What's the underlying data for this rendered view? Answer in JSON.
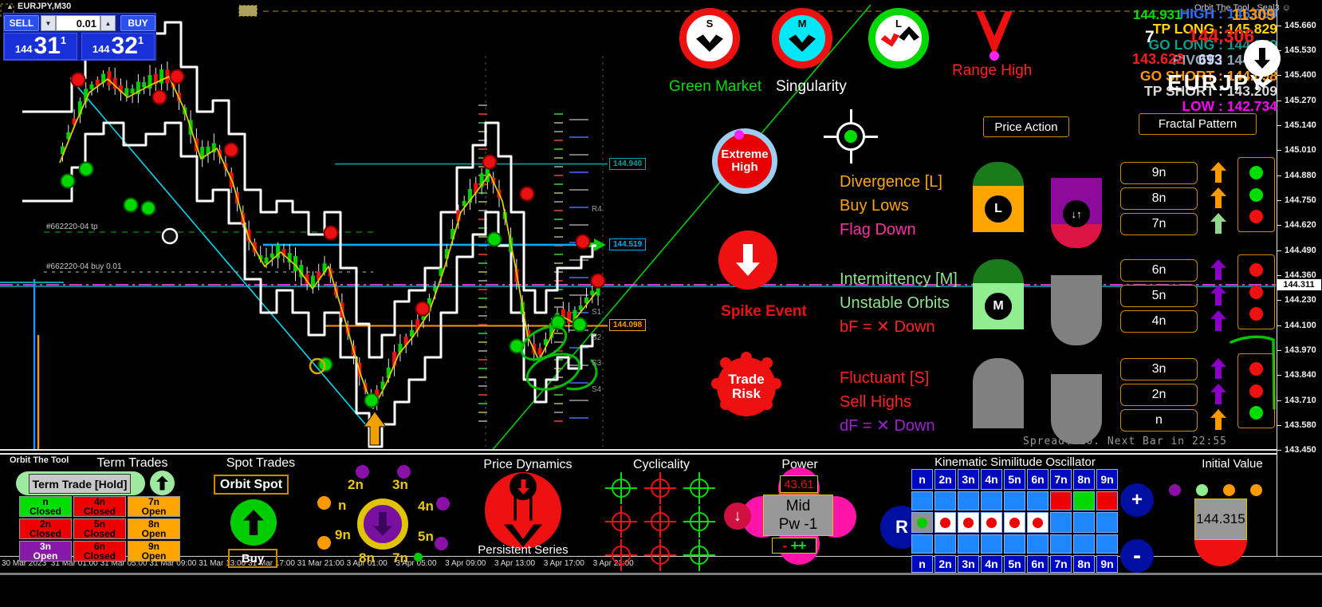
{
  "window": {
    "overlay_title": "Orbit The Tool - Seal3 ☺",
    "watermark": "Orbit The Tool"
  },
  "header": {
    "symbol": "EURJPY,M30",
    "sell": "SELL",
    "buy": "BUY",
    "volume": "0.01",
    "bid_small": "144",
    "bid_big": "31",
    "bid_sup": "1",
    "ask_small": "144",
    "ask_big": "32",
    "ask_sup": "1"
  },
  "signals": {
    "s": "S",
    "m": "M",
    "l": "L",
    "green_market": "Green Market",
    "singularity": "Singularity",
    "range_high": "Range High",
    "extreme_high_1": "Extreme",
    "extreme_high_2": "High",
    "spike_event": "Spike Event",
    "trade_risk_1": "Trade",
    "trade_risk_2": "Risk"
  },
  "panel": {
    "price_action": "Price Action",
    "fractal_pattern": "Fractal Pattern",
    "groups": [
      {
        "lines": [
          {
            "text": "Divergence [L]",
            "color": "#ffa500"
          },
          {
            "text": "Buy Lows",
            "color": "#ffa500"
          },
          {
            "text": "Flag Down",
            "color": "#ff2fa5"
          }
        ],
        "badge": "L",
        "icon1": {
          "shape": "top",
          "dome": "#1b7a1b",
          "body": "#ffa500"
        },
        "icon2": {
          "shape": "bottom",
          "dome": "#dc1444",
          "body": "#8b0a9b",
          "glyph": "↓↑"
        },
        "buttons": [
          {
            "label": "9n"
          },
          {
            "label": "8n"
          },
          {
            "label": "7n"
          }
        ],
        "arrows": [
          {
            "dir": "up",
            "color": "#ff9900"
          },
          {
            "dir": "up",
            "color": "#ff9900"
          },
          {
            "dir": "up",
            "color": "#8fd98f"
          }
        ],
        "dots": [
          "#00dd00",
          "#00dd00",
          "#ee1111"
        ]
      },
      {
        "lines": [
          {
            "text": "Intermittency [M]",
            "color": "#8fe38f"
          },
          {
            "text": "Unstable Orbits",
            "color": "#8fe38f"
          },
          {
            "text": "bF = ✕ Down",
            "color": "#ff2222"
          }
        ],
        "badge": "M",
        "icon1": {
          "shape": "top",
          "dome": "#1b7a1b",
          "body": "#90ee90"
        },
        "icon2": {
          "shape": "bottom",
          "dome": "#808080",
          "body": "#808080",
          "glyph": ""
        },
        "buttons": [
          {
            "label": "6n"
          },
          {
            "label": "5n"
          },
          {
            "label": "4n"
          }
        ],
        "arrows": [
          {
            "dir": "down",
            "color": "#8a00c8"
          },
          {
            "dir": "down",
            "color": "#8a00c8"
          },
          {
            "dir": "down",
            "color": "#8a00c8"
          }
        ],
        "dots": [
          "#ee1111",
          "#ee1111",
          "#ee1111"
        ]
      },
      {
        "lines": [
          {
            "text": "Fluctuant [S]",
            "color": "#ff2222"
          },
          {
            "text": "Sell Highs",
            "color": "#ff2222"
          },
          {
            "text": "dF = ✕ Down",
            "color": "#9922cc"
          }
        ],
        "badge": "",
        "icon1": {
          "shape": "top",
          "dome": "#808080",
          "body": "#808080"
        },
        "icon2": {
          "shape": "bottom",
          "dome": "#808080",
          "body": "#808080",
          "glyph": ""
        },
        "buttons": [
          {
            "label": "3n"
          },
          {
            "label": "2n"
          },
          {
            "label": "n"
          }
        ],
        "arrows": [
          {
            "dir": "down",
            "color": "#8a00c8"
          },
          {
            "dir": "down",
            "color": "#8a00c8"
          },
          {
            "dir": "up",
            "color": "#ff9900"
          }
        ],
        "dots": [
          "#ee1111",
          "#ee1111",
          "#00dd00"
        ]
      }
    ]
  },
  "ticker": {
    "lines": [
      {
        "text": "HIGH : 146.090",
        "color": "#2f6fff"
      },
      {
        "text": "TP LONG : 145.829",
        "color": "#ffd400"
      },
      {
        "text": "GO LONG : 144.940",
        "color": "#0f9b8e"
      },
      {
        "text": "PIVOT : 144.519",
        "color": "#8fa8b8"
      },
      {
        "text": "GO SHORT : 144.098",
        "color": "#ff9900"
      },
      {
        "text": "TP SHORT : 143.209",
        "color": "#d8d8d8"
      },
      {
        "text": "LOW : 142.734",
        "color": "#ff00ff"
      }
    ],
    "bignums": [
      {
        "text": "144.931",
        "color": "#00e000"
      },
      {
        "text": "11309",
        "color": "#ff9900"
      },
      {
        "text": "144.306",
        "color": "#ff1a1a"
      },
      {
        "text": "7",
        "color": "#ffffff"
      },
      {
        "text": "143.622",
        "color": "#ff1a1a"
      },
      {
        "text": "693",
        "color": "#cfd8ff"
      }
    ],
    "symbol": "EURJPY"
  },
  "chart": {
    "price_axis": [
      "145.660",
      "145.530",
      "145.400",
      "145.270",
      "145.140",
      "145.010",
      "144.880",
      "144.750",
      "144.620",
      "144.490",
      "144.360",
      "144.230",
      "144.100",
      "143.970",
      "143.840",
      "143.710",
      "143.580",
      "143.450"
    ],
    "current_price": "144.311",
    "levels": [
      {
        "label": "144.940",
        "color": "#00a0a0"
      },
      {
        "label": "144.519",
        "color": "#00aaff"
      },
      {
        "label": "144.098",
        "color": "#ff9900"
      }
    ],
    "sr_labels": [
      "R4",
      "S1",
      "S2",
      "S3",
      "S4"
    ],
    "trade_labels": [
      "#662220-04 tp",
      "#662220-04 buy 0.01"
    ],
    "time_axis": [
      "30 Mar 2023",
      "31 Mar 01:00",
      "31 Mar 05:00",
      "31 Mar 09:00",
      "31 Mar 13:00",
      "31 Mar 17:00",
      "31 Mar 21:00",
      "3 Apr 01:00",
      "3 Apr 05:00",
      "3 Apr 09:00",
      "3 Apr 13:00",
      "3 Apr 17:00",
      "3 Apr 21:00"
    ],
    "spread_note": "Spread: 10. Next Bar in 22:55"
  },
  "bottom": {
    "term": {
      "title": "Term Trades",
      "hold": "Term Trade [Hold]",
      "cells": [
        {
          "label": "n",
          "status": "Closed",
          "bg": "green"
        },
        {
          "label": "4n",
          "status": "Closed",
          "bg": "red"
        },
        {
          "label": "7n",
          "status": "Open",
          "bg": "orange"
        },
        {
          "label": "2n",
          "status": "Closed",
          "bg": "red"
        },
        {
          "label": "5n",
          "status": "Closed",
          "bg": "red"
        },
        {
          "label": "8n",
          "status": "Open",
          "bg": "orange"
        },
        {
          "label": "3n",
          "status": "Open",
          "bg": "purple"
        },
        {
          "label": "6n",
          "status": "Closed",
          "bg": "red"
        },
        {
          "label": "9n",
          "status": "Open",
          "bg": "orange"
        }
      ]
    },
    "spot": {
      "title": "Spot Trades",
      "orbit": "Orbit Spot",
      "buy": "Buy"
    },
    "dial": {
      "slots": [
        {
          "label": "2n",
          "dot": "#8a10a8",
          "slot": "s0"
        },
        {
          "label": "3n",
          "dot": "#8a10a8",
          "slot": "s1"
        },
        {
          "label": "n",
          "dot": "#ff9900",
          "slot": "s2"
        },
        {
          "label": "4n",
          "dot": "#8a10a8",
          "slot": "s3"
        },
        {
          "label": "9n",
          "dot": "#ff9900",
          "slot": "s4"
        },
        {
          "label": "5n",
          "dot": "#8a10a8",
          "slot": "s5"
        },
        {
          "label": "8n",
          "dot": "",
          "slot": "s6"
        },
        {
          "label": "7n",
          "dot": "",
          "slot": "s7"
        },
        {
          "label": "",
          "dot": "#00cc00",
          "slot": "s8"
        }
      ]
    },
    "dynamics": {
      "title": "Price Dynamics",
      "caption": "Persistent Series"
    },
    "cyclicality": {
      "title": "Cyclicality",
      "grid": [
        "G",
        "R",
        "G",
        "R",
        "R",
        "G",
        "R",
        "R",
        "G"
      ]
    },
    "power": {
      "title": "Power",
      "value": "43.61",
      "mode1": "Mid",
      "mode2": "Pw -1",
      "minus": "-",
      "plus": "++",
      "down_glyph": "↓"
    },
    "kinematic": {
      "title": "Kinematic Similitude Oscillator",
      "r": "R",
      "plus": "+",
      "minus": "-",
      "header": [
        "n",
        "2n",
        "3n",
        "4n",
        "5n",
        "6n",
        "7n",
        "8n",
        "9n"
      ],
      "cells": [
        {
          "bg": "B"
        },
        {
          "bg": "B"
        },
        {
          "bg": "B"
        },
        {
          "bg": "B"
        },
        {
          "bg": "B"
        },
        {
          "bg": "B"
        },
        {
          "bg": "R"
        },
        {
          "bg": "G"
        },
        {
          "bg": "R"
        },
        {
          "bg": "GY",
          "dot": "#00cc00"
        },
        {
          "bg": "W",
          "dot": "#ee0000"
        },
        {
          "bg": "W",
          "dot": "#ee0000"
        },
        {
          "bg": "W",
          "dot": "#ee0000"
        },
        {
          "bg": "W",
          "dot": "#ee0000"
        },
        {
          "bg": "W",
          "dot": "#ee0000"
        },
        {
          "bg": "B"
        },
        {
          "bg": "B"
        },
        {
          "bg": "B"
        },
        {
          "bg": "B"
        },
        {
          "bg": "B"
        },
        {
          "bg": "B"
        },
        {
          "bg": "B"
        },
        {
          "bg": "B"
        },
        {
          "bg": "B"
        },
        {
          "bg": "B"
        },
        {
          "bg": "B"
        },
        {
          "bg": "B"
        }
      ],
      "footer": [
        "n",
        "2n",
        "3n",
        "4n",
        "5n",
        "6n",
        "7n",
        "8n",
        "9n"
      ]
    },
    "initial": {
      "title": "Initial Value",
      "value": "144.315",
      "dots": [
        "#8a10a8",
        "#90ee90",
        "#ff9900",
        "#ff9900"
      ]
    }
  }
}
